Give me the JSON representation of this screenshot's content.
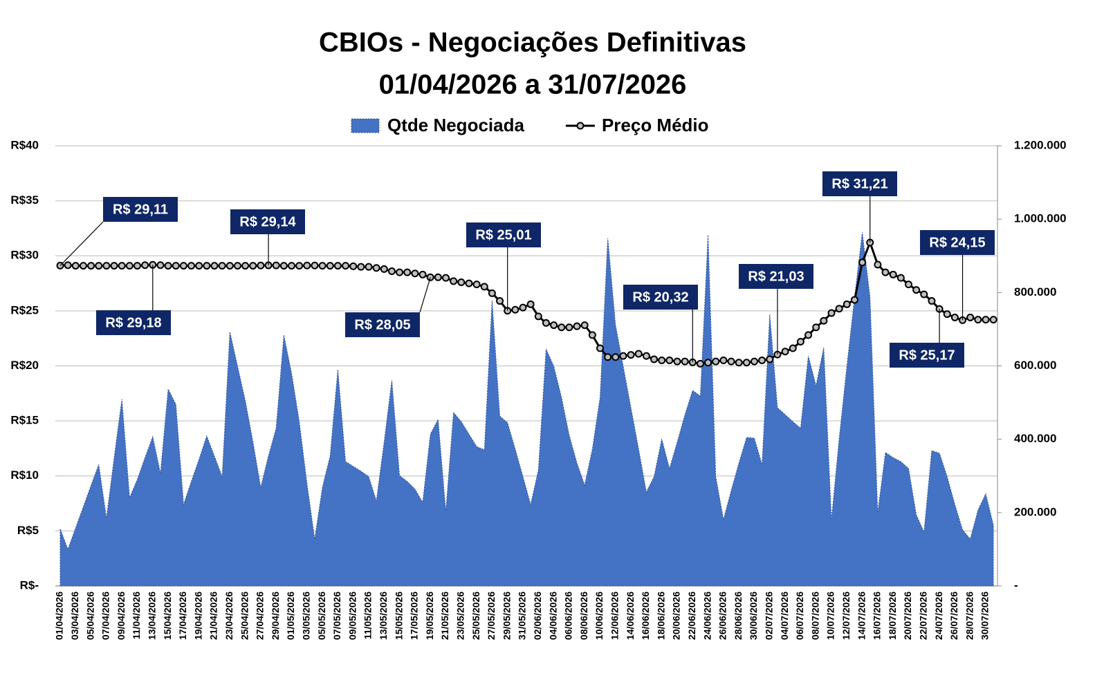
{
  "chart_data": {
    "type": "combo",
    "title": "CBIOs - Negociações Definitivas",
    "subtitle": "01/04/2026 a 31/07/2026",
    "categories": [
      "01/04/2026",
      null,
      "03/04/2026",
      null,
      "05/04/2026",
      null,
      "07/04/2026",
      null,
      "09/04/2026",
      null,
      "11/04/2026",
      null,
      "13/04/2026",
      null,
      "15/04/2026",
      null,
      "17/04/2026",
      null,
      "19/04/2026",
      null,
      "21/04/2026",
      null,
      "23/04/2026",
      null,
      "25/04/2026",
      null,
      "27/04/2026",
      null,
      "29/04/2026",
      null,
      "01/05/2026",
      null,
      "03/05/2026",
      null,
      "05/05/2026",
      null,
      "07/05/2026",
      null,
      "09/05/2026",
      null,
      "11/05/2026",
      null,
      "13/05/2026",
      null,
      "15/05/2026",
      null,
      "17/05/2026",
      null,
      "19/05/2026",
      null,
      "21/05/2026",
      null,
      "23/05/2026",
      null,
      "25/05/2026",
      null,
      "27/05/2026",
      null,
      "29/05/2026",
      null,
      "31/05/2026",
      null,
      "02/06/2026",
      null,
      "04/06/2026",
      null,
      "06/06/2026",
      null,
      "08/06/2026",
      null,
      "10/06/2026",
      null,
      "12/06/2026",
      null,
      "14/06/2026",
      null,
      "16/06/2026",
      null,
      "18/06/2026",
      null,
      "20/06/2026",
      null,
      "22/06/2026",
      null,
      "24/06/2026",
      null,
      "26/06/2026",
      null,
      "28/06/2026",
      null,
      "30/06/2026",
      null,
      "02/07/2026",
      null,
      "04/07/2026",
      null,
      "06/07/2026",
      null,
      "08/07/2026",
      null,
      "10/07/2026",
      null,
      "12/07/2026",
      null,
      "14/07/2026",
      null,
      "16/07/2026",
      null,
      "18/07/2026",
      null,
      "20/07/2026",
      null,
      "22/07/2026",
      null,
      "24/07/2026",
      null,
      "26/07/2026",
      null,
      "28/07/2026",
      null,
      "30/07/2026",
      null
    ],
    "series": [
      {
        "name": "Qtde Negociada",
        "type": "area",
        "color": "#4472c4",
        "axis": "y2",
        "values": [
          156000,
          100000,
          158000,
          216000,
          274000,
          331000,
          185000,
          350000,
          509000,
          241000,
          290000,
          350000,
          407000,
          307000,
          537000,
          495000,
          222000,
          285000,
          345000,
          409000,
          354000,
          298000,
          693000,
          599000,
          505000,
          392000,
          269000,
          354000,
          430000,
          684000,
          580000,
          448000,
          279000,
          128000,
          269000,
          354000,
          590000,
          339000,
          326000,
          313000,
          298000,
          232000,
          392000,
          561000,
          301000,
          285000,
          264000,
          228000,
          414000,
          454000,
          203000,
          473000,
          448000,
          414000,
          380000,
          371000,
          778000,
          463000,
          445000,
          373000,
          298000,
          222000,
          316000,
          646000,
          599000,
          514000,
          411000,
          335000,
          275000,
          373000,
          514000,
          948000,
          712000,
          599000,
          486000,
          373000,
          256000,
          298000,
          401000,
          320000,
          392000,
          467000,
          533000,
          518000,
          957000,
          298000,
          181000,
          260000,
          335000,
          405000,
          403000,
          331000,
          740000,
          486000,
          467000,
          448000,
          430000,
          627000,
          546000,
          650000,
          181000,
          401000,
          599000,
          787000,
          964000,
          787000,
          200000,
          364000,
          350000,
          339000,
          320000,
          194000,
          147000,
          369000,
          362000,
          298000,
          222000,
          153000,
          128000,
          207000,
          251000,
          166000
        ]
      },
      {
        "name": "Preço Médio",
        "type": "line",
        "color": "#000000",
        "values": [
          29.11,
          29.15,
          29.1,
          29.1,
          29.1,
          29.1,
          29.1,
          29.1,
          29.1,
          29.1,
          29.1,
          29.15,
          29.18,
          29.15,
          29.1,
          29.1,
          29.1,
          29.1,
          29.1,
          29.1,
          29.1,
          29.1,
          29.1,
          29.1,
          29.1,
          29.1,
          29.12,
          29.14,
          29.13,
          29.1,
          29.1,
          29.1,
          29.12,
          29.12,
          29.1,
          29.1,
          29.1,
          29.1,
          29.05,
          29.0,
          29.0,
          28.9,
          28.8,
          28.6,
          28.5,
          28.5,
          28.4,
          28.3,
          28.05,
          28.05,
          28.0,
          27.7,
          27.6,
          27.5,
          27.4,
          27.2,
          26.6,
          25.9,
          25.01,
          25.1,
          25.3,
          25.6,
          24.5,
          23.9,
          23.7,
          23.5,
          23.5,
          23.6,
          23.7,
          22.8,
          21.6,
          20.8,
          20.8,
          20.9,
          21.0,
          21.1,
          20.9,
          20.6,
          20.5,
          20.5,
          20.4,
          20.4,
          20.32,
          20.2,
          20.3,
          20.4,
          20.5,
          20.4,
          20.3,
          20.3,
          20.4,
          20.5,
          20.6,
          21.03,
          21.3,
          21.6,
          22.2,
          22.8,
          23.5,
          24.1,
          24.8,
          25.2,
          25.6,
          26.0,
          29.4,
          31.21,
          29.2,
          28.5,
          28.3,
          28.0,
          27.4,
          26.9,
          26.5,
          25.9,
          25.17,
          24.7,
          24.4,
          24.15,
          24.4,
          24.2,
          24.2,
          24.2
        ],
        "value_labels": [
          "R$ 29,11",
          null,
          null,
          null,
          null,
          null,
          null,
          null,
          null,
          null,
          null,
          null,
          "R$ 29,18",
          null,
          null,
          null,
          null,
          null,
          null,
          null,
          null,
          null,
          null,
          null,
          null,
          null,
          null,
          "R$ 29,14",
          null,
          null,
          null,
          null,
          null,
          null,
          null,
          null,
          null,
          null,
          null,
          null,
          null,
          null,
          null,
          null,
          null,
          null,
          null,
          null,
          "R$ 28,05",
          null,
          null,
          null,
          null,
          null,
          null,
          null,
          null,
          null,
          "R$ 25,01",
          null,
          null,
          null,
          null,
          null,
          null,
          null,
          null,
          null,
          null,
          null,
          null,
          null,
          null,
          null,
          null,
          null,
          null,
          null,
          null,
          null,
          null,
          null,
          "R$ 20,32",
          null,
          null,
          null,
          null,
          null,
          null,
          null,
          null,
          null,
          null,
          "R$ 21,03",
          null,
          null,
          null,
          null,
          null,
          null,
          null,
          null,
          null,
          null,
          null,
          "R$ 31,21",
          null,
          null,
          null,
          null,
          null,
          null,
          null,
          null,
          "R$ 25,17",
          null,
          null,
          "R$ 24,15",
          null,
          null,
          null,
          null
        ]
      }
    ],
    "ylim": [
      0,
      40
    ],
    "yticks": [
      {
        "value": 0,
        "label": "R$-"
      },
      {
        "value": 5,
        "label": "R$5"
      },
      {
        "value": 10,
        "label": "R$10"
      },
      {
        "value": 15,
        "label": "R$15"
      },
      {
        "value": 20,
        "label": "R$20"
      },
      {
        "value": 25,
        "label": "R$25"
      },
      {
        "value": 30,
        "label": "R$30"
      },
      {
        "value": 35,
        "label": "R$35"
      },
      {
        "value": 40,
        "label": "R$40"
      }
    ],
    "y2lim": [
      0,
      1200000
    ],
    "y2ticks": [
      {
        "value": 0,
        "label": "-"
      },
      {
        "value": 200000,
        "label": "200.000"
      },
      {
        "value": 400000,
        "label": "400.000"
      },
      {
        "value": 600000,
        "label": "600.000"
      },
      {
        "value": 800000,
        "label": "800.000"
      },
      {
        "value": 1000000,
        "label": "1.000.000"
      },
      {
        "value": 1200000,
        "label": "1.200.000"
      }
    ],
    "grid": true,
    "legend": "top"
  }
}
